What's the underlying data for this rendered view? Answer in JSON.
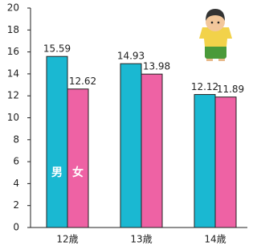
{
  "chart_data": {
    "type": "bar",
    "categories": [
      "12歳",
      "13歳",
      "14歳"
    ],
    "series": [
      {
        "name": "男",
        "color": "#1ab8d2",
        "values": [
          15.59,
          14.93,
          12.12
        ]
      },
      {
        "name": "女",
        "color": "#ee62a4",
        "values": [
          12.62,
          13.98,
          11.89
        ]
      }
    ],
    "ylim": [
      0,
      20
    ],
    "yticks": [
      0,
      2,
      4,
      6,
      8,
      10,
      12,
      14,
      16,
      18,
      20
    ],
    "grid": false
  }
}
